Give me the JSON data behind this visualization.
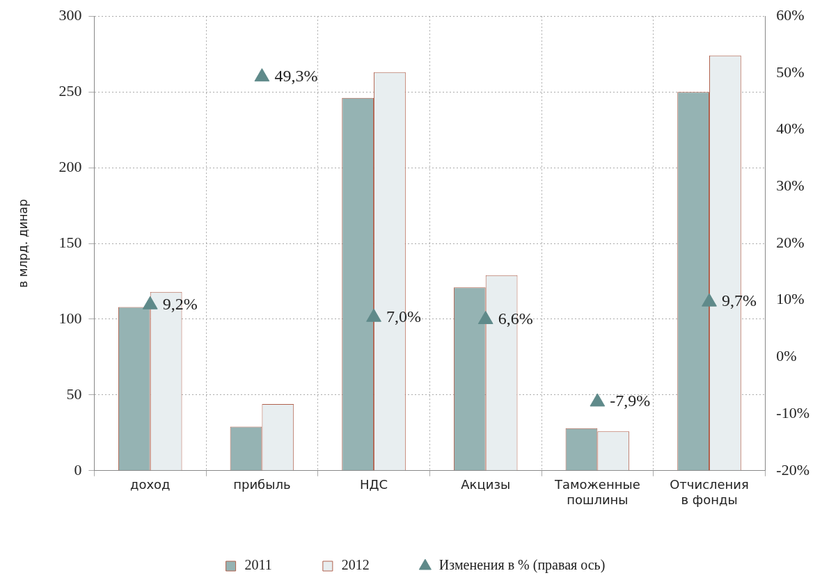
{
  "chart_data": {
    "type": "bar",
    "ylabel": "в млрд. динар",
    "categories": [
      "доход",
      "прибыль",
      "НДС",
      "Акцизы",
      "Таможенные пошлины",
      "Отчисления в фонды"
    ],
    "series": [
      {
        "name": "2011",
        "color": "#95b3b3",
        "values": [
          108,
          29,
          246,
          121,
          28,
          250
        ]
      },
      {
        "name": "2012",
        "color": "#e8eef0",
        "values": [
          118,
          44,
          263,
          129,
          26,
          274
        ]
      },
      {
        "name": "Изменения в % (правая ось)",
        "type": "scatter",
        "axis": "y2",
        "marker": "triangle",
        "color": "#5f8a8a",
        "values": [
          9.2,
          49.3,
          7.0,
          6.6,
          -7.9,
          9.7
        ],
        "value_labels": [
          "9,2%",
          "49,3%",
          "7,0%",
          "6,6%",
          "-7,9%",
          "9,7%"
        ]
      }
    ],
    "ylim": [
      0,
      300
    ],
    "yticks": [
      0,
      50,
      100,
      150,
      200,
      250,
      300
    ],
    "y2lim": [
      -20,
      60
    ],
    "y2ticks": [
      {
        "value": -20,
        "label": "-20%"
      },
      {
        "value": -10,
        "label": "-10%"
      },
      {
        "value": 0,
        "label": "0%"
      },
      {
        "value": 10,
        "label": "10%"
      },
      {
        "value": 20,
        "label": "20%"
      },
      {
        "value": 30,
        "label": "30%"
      },
      {
        "value": 40,
        "label": "40%"
      },
      {
        "value": 50,
        "label": "50%"
      },
      {
        "value": 60,
        "label": "60%"
      }
    ],
    "grid": true,
    "legend": "bottom"
  }
}
